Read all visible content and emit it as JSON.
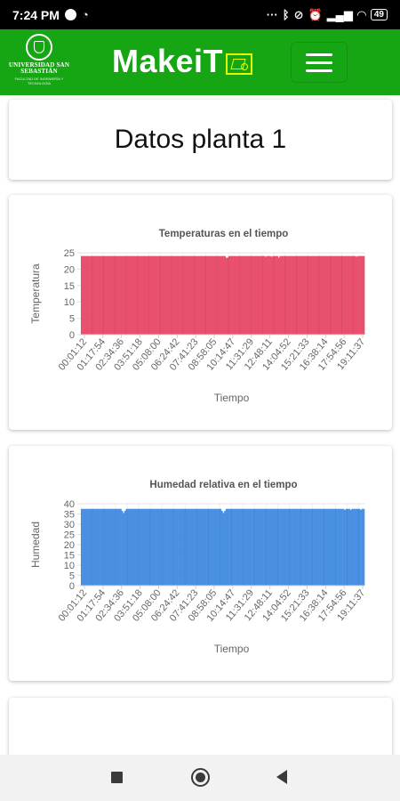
{
  "status_bar": {
    "time": "7:24 PM",
    "left_icons": [
      "spotify-icon",
      "whatsapp-icon"
    ],
    "right_icons": [
      "dots-icon",
      "bluetooth-icon",
      "mute-icon",
      "alarm-icon",
      "signal-icon",
      "wifi-icon"
    ],
    "battery": "49"
  },
  "navbar": {
    "university_name": "UNIVERSIDAD SAN SEBASTIÁN",
    "university_sub": "FACULTAD DE INGENIERÍA Y TECNOLOGÍA",
    "brand": "MakeiT",
    "brand_color": "#16a614",
    "menu_icon": "hamburger-icon"
  },
  "page": {
    "title": "Datos planta 1"
  },
  "chart_data": [
    {
      "type": "bar",
      "title": "Temperaturas en el tiempo",
      "xlabel": "Tiempo",
      "ylabel": "Temperatura",
      "ylim": [
        0,
        25
      ],
      "yticks": [
        0,
        5,
        10,
        15,
        20,
        25
      ],
      "x_tick_labels": [
        "00:01:12",
        "01:17:54",
        "02:34:36",
        "03:51:18",
        "05:08:00",
        "06:24:42",
        "07:41:23",
        "08:58:05",
        "10:14:47",
        "11:31:29",
        "12:48:11",
        "14:04:52",
        "15:21:33",
        "16:38:14",
        "17:54:56",
        "19:11:37"
      ],
      "color": "#e8506e",
      "grid": true,
      "legend": "none",
      "series": [
        {
          "values": [
            24,
            24,
            24,
            24,
            24,
            24,
            24,
            24,
            24,
            24,
            24,
            24,
            24,
            24,
            24,
            24,
            24,
            24,
            24,
            24,
            24,
            24,
            24,
            24,
            24,
            24,
            24,
            24,
            24,
            24,
            24,
            24,
            24,
            24,
            24,
            24,
            24,
            24,
            24,
            24,
            24,
            24,
            24,
            24,
            24,
            24,
            24,
            24,
            24,
            24,
            24,
            24,
            24,
            24,
            24,
            24,
            24,
            24,
            24,
            24,
            24,
            24,
            24,
            24,
            24,
            24,
            24,
            24,
            24,
            24,
            24,
            24,
            24,
            24,
            24,
            24,
            24,
            24,
            24,
            24,
            24,
            24,
            24,
            24,
            24,
            24,
            24,
            24,
            24,
            24,
            24,
            24,
            24,
            24,
            24,
            24,
            24,
            24,
            24,
            24,
            24,
            24,
            23.5,
            23.5,
            24,
            24,
            24,
            24,
            24,
            24,
            24,
            24,
            24,
            24,
            24,
            24,
            24,
            24,
            24,
            24,
            24,
            24,
            24,
            24,
            24,
            24,
            24,
            24,
            24,
            24,
            23.8,
            24,
            24,
            24,
            23.8,
            24,
            24,
            24,
            24,
            23.5,
            24,
            24,
            24,
            24,
            24,
            24,
            24,
            24,
            24,
            24,
            24,
            24,
            24,
            24,
            24,
            24,
            24,
            24,
            24,
            24,
            24,
            24,
            24,
            24,
            24,
            24,
            24,
            24,
            24,
            24,
            24,
            24,
            24,
            24,
            24,
            24,
            24,
            24,
            24,
            24,
            24,
            24,
            24,
            24,
            24,
            24,
            24,
            24,
            24,
            24,
            24,
            24,
            24,
            24,
            23.8,
            24,
            24,
            24,
            24,
            24
          ]
        }
      ]
    },
    {
      "type": "bar",
      "title": "Humedad relativa en el tiempo",
      "xlabel": "Tiempo",
      "ylabel": "Humedad",
      "ylim": [
        0,
        40
      ],
      "yticks": [
        0,
        5,
        10,
        15,
        20,
        25,
        30,
        35,
        40
      ],
      "x_tick_labels": [
        "00:01:12",
        "01:17:54",
        "02:34:36",
        "03:51:18",
        "05:08:00",
        "06:24:42",
        "07:41:23",
        "08:58:05",
        "10:14:47",
        "11:31:29",
        "12:48:11",
        "14:04:52",
        "15:21:33",
        "16:38:14",
        "17:54:56",
        "19:11:37"
      ],
      "color": "#4a90e2",
      "grid": true,
      "legend": "none",
      "series": [
        {
          "values": [
            37.5,
            37.5,
            37.5,
            37.5,
            37.5,
            37.5,
            37.5,
            37.5,
            37.5,
            37.5,
            37.5,
            37.5,
            37.5,
            37.5,
            37.5,
            37.5,
            37.5,
            37.5,
            37.5,
            37.5,
            37.5,
            37.5,
            37.5,
            37.5,
            37.5,
            37.5,
            37.5,
            37.5,
            36.5,
            35.5,
            36.5,
            37.5,
            37.5,
            37.5,
            37.5,
            37.5,
            37.5,
            37.5,
            37.5,
            37.5,
            37.5,
            37.5,
            37.5,
            37.5,
            37.5,
            37.5,
            37.5,
            37.5,
            37.5,
            37.5,
            37.5,
            37.5,
            37.5,
            37.5,
            37.5,
            37.5,
            37.5,
            37.5,
            37.5,
            37.5,
            37.5,
            37.5,
            37.5,
            37.5,
            37.5,
            37.5,
            37.5,
            37.5,
            37.5,
            37.5,
            37.5,
            37.5,
            37.5,
            37.5,
            37.5,
            37.5,
            37.5,
            37.5,
            37.5,
            37.5,
            37.5,
            37.5,
            37.5,
            37.5,
            37.5,
            37.5,
            37.5,
            37.5,
            37.5,
            37.5,
            37.5,
            37.5,
            37.5,
            37.5,
            37.5,
            37.5,
            37.5,
            36.5,
            35.5,
            36.5,
            37.5,
            37.5,
            37.5,
            37.5,
            37.5,
            37.5,
            37.5,
            37.5,
            37.5,
            37.5,
            37.5,
            37.5,
            37.5,
            37.5,
            37.5,
            37.5,
            37.5,
            37.5,
            37.5,
            37.5,
            37.5,
            37.5,
            37.5,
            37.5,
            37.5,
            37.5,
            37.5,
            37.5,
            37.5,
            37.5,
            37.5,
            37.5,
            37.5,
            37.5,
            37.5,
            37.5,
            37.5,
            37.5,
            37.5,
            37.5,
            37.5,
            37.5,
            37.5,
            37.5,
            37.5,
            37.5,
            37.5,
            37.5,
            37.5,
            37.5,
            37.5,
            37.5,
            37.5,
            37.5,
            37.5,
            37.5,
            37.5,
            37.5,
            37.5,
            37.5,
            37.5,
            37.5,
            37.5,
            37.5,
            37.5,
            37.5,
            37.5,
            37.5,
            37.5,
            37.5,
            37.5,
            37.5,
            37.5,
            37.5,
            37.5,
            37.5,
            37.5,
            37.5,
            37.5,
            37.5,
            37.5,
            37.5,
            37,
            37.5,
            37.5,
            37.5,
            37,
            37.5,
            37.5,
            37.5,
            37.5,
            37.5,
            37.5,
            37,
            37.5,
            37.5
          ]
        }
      ]
    }
  ],
  "android_nav": {
    "recents_icon": "square-icon",
    "home_icon": "circle-icon",
    "back_icon": "triangle-back-icon"
  }
}
